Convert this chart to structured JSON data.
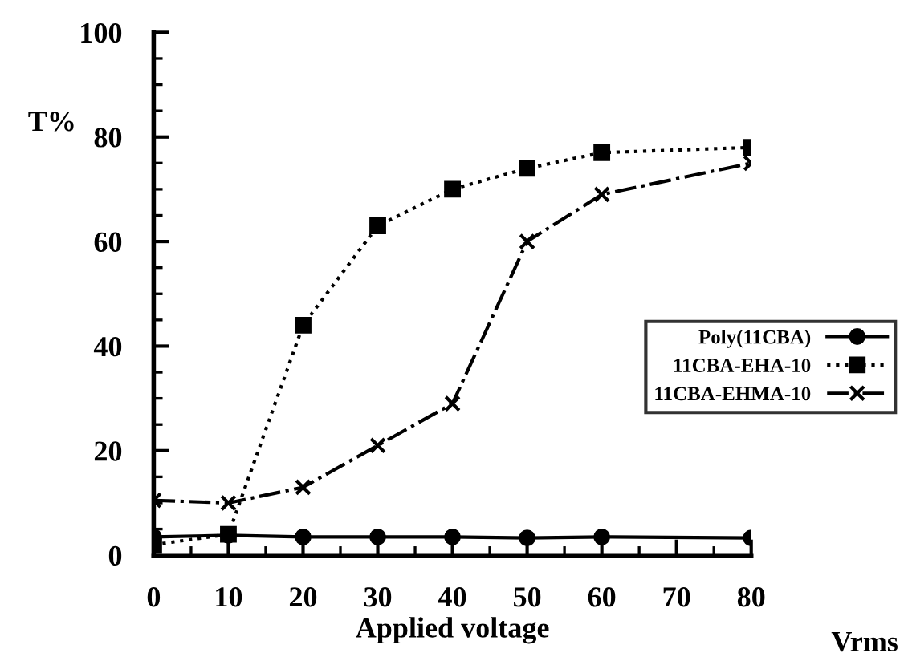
{
  "chart_data": {
    "type": "line",
    "xlabel": "Applied voltage",
    "ylabel": "T%",
    "x": [
      0,
      10,
      20,
      30,
      40,
      50,
      60,
      80
    ],
    "series": [
      {
        "name": "Poly(11CBA)",
        "color": "#000000",
        "marker": "circle",
        "line_style": "solid",
        "values": [
          3.5,
          3.8,
          3.5,
          3.5,
          3.5,
          3.3,
          3.5,
          3.3
        ]
      },
      {
        "name": "11CBA-EHA-10",
        "color": "#000000",
        "marker": "square",
        "line_style": "dotted",
        "values": [
          2,
          4,
          44,
          63,
          70,
          74,
          77,
          78
        ]
      },
      {
        "name": "11CBA-EHMA-10",
        "color": "#000000",
        "marker": "cross",
        "line_style": "dashdot",
        "values": [
          10.5,
          10,
          13,
          21,
          29,
          60,
          69,
          75
        ]
      }
    ],
    "xlim": [
      0,
      80
    ],
    "xticks": [
      0,
      10,
      20,
      30,
      40,
      50,
      60,
      70,
      80
    ],
    "ylim": [
      0,
      100
    ],
    "yticks": [
      0,
      20,
      40,
      60,
      80,
      100
    ],
    "annotations": [
      "Vrms"
    ],
    "grid": false,
    "legend": "right"
  }
}
